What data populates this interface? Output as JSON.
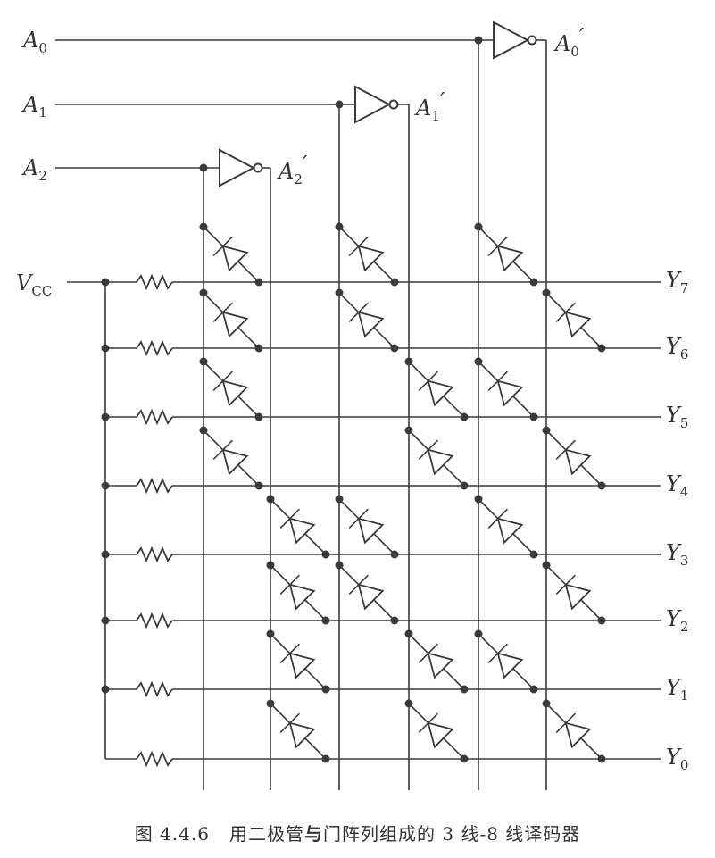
{
  "inputs": [
    {
      "id": "A0",
      "base": "A",
      "sub": "0"
    },
    {
      "id": "A1",
      "base": "A",
      "sub": "1"
    },
    {
      "id": "A2",
      "base": "A",
      "sub": "2"
    }
  ],
  "inverted_inputs": [
    {
      "id": "A0'",
      "base": "A",
      "sub": "0",
      "prime": "′"
    },
    {
      "id": "A1'",
      "base": "A",
      "sub": "1",
      "prime": "′"
    },
    {
      "id": "A2'",
      "base": "A",
      "sub": "2",
      "prime": "′"
    }
  ],
  "supply": {
    "base": "V",
    "sub": "CC"
  },
  "outputs": [
    {
      "id": "Y7",
      "base": "Y",
      "sub": "7",
      "diodes_on": [
        "A2",
        "A1",
        "A0"
      ]
    },
    {
      "id": "Y6",
      "base": "Y",
      "sub": "6",
      "diodes_on": [
        "A2",
        "A1",
        "A0'"
      ]
    },
    {
      "id": "Y5",
      "base": "Y",
      "sub": "5",
      "diodes_on": [
        "A2",
        "A1'",
        "A0"
      ]
    },
    {
      "id": "Y4",
      "base": "Y",
      "sub": "4",
      "diodes_on": [
        "A2",
        "A1'",
        "A0'"
      ]
    },
    {
      "id": "Y3",
      "base": "Y",
      "sub": "3",
      "diodes_on": [
        "A2'",
        "A1",
        "A0"
      ]
    },
    {
      "id": "Y2",
      "base": "Y",
      "sub": "2",
      "diodes_on": [
        "A2'",
        "A1",
        "A0'"
      ]
    },
    {
      "id": "Y1",
      "base": "Y",
      "sub": "1",
      "diodes_on": [
        "A2'",
        "A1'",
        "A0"
      ]
    },
    {
      "id": "Y0",
      "base": "Y",
      "sub": "0",
      "diodes_on": [
        "A2'",
        "A1'",
        "A0'"
      ]
    }
  ],
  "caption": {
    "number": "图 4.4.6",
    "text_before": "用二极管",
    "emphasis": "与",
    "text_after": "门阵列组成的 3 线-8 线译码器"
  }
}
